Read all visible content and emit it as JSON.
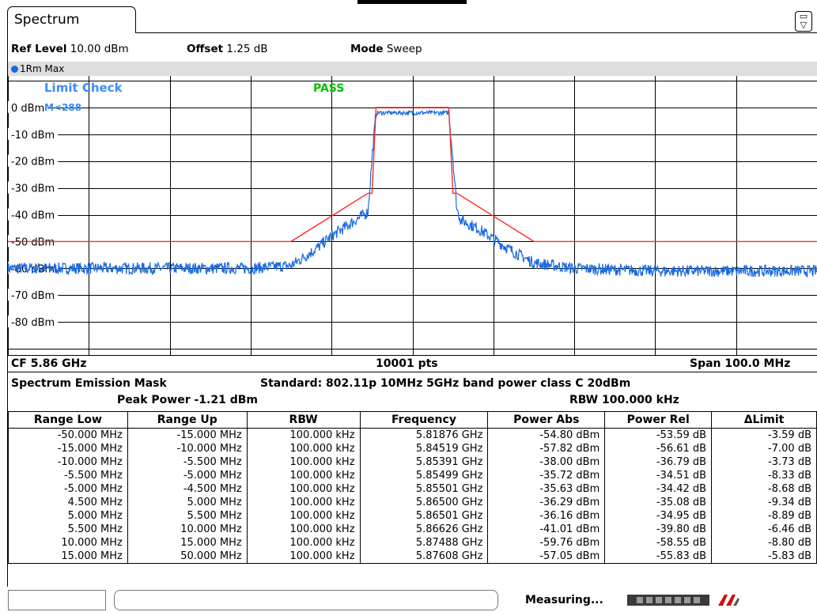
{
  "tab": {
    "label": "Spectrum"
  },
  "settings": {
    "ref_level_label": "Ref Level",
    "ref_level_value": "10.00 dBm",
    "offset_label": "Offset",
    "offset_value": "1.25 dB",
    "mode_label": "Mode",
    "mode_value": "Sweep"
  },
  "trace": {
    "label": "1Rm Max",
    "color": "#1a6adf"
  },
  "plot": {
    "limit_check_label": "Limit Check",
    "limit_check_result": "PASS",
    "limit_line_label": "M<288",
    "y_ticks": [
      "0 dBm",
      "-10 dBm",
      "-20 dBm",
      "-30 dBm",
      "-40 dBm",
      "-50 dBm",
      "-60 dBm",
      "-70 dBm",
      "-80 dBm"
    ],
    "cf": "CF 5.86 GHz",
    "points": "10001 pts",
    "span": "Span 100.0 MHz",
    "pass_color": "#00c000",
    "limit_color": "#ff2a2a",
    "label_color": "#3a8cff"
  },
  "chart_data": {
    "type": "line",
    "x_unit": "MHz offset",
    "xlim": [
      -50,
      50
    ],
    "ylim": [
      -90,
      10
    ],
    "ylabel_unit": "dBm",
    "series": [
      {
        "name": "1Rm Max",
        "x": [
          -50,
          -35,
          -20,
          -15,
          -12,
          -10,
          -8,
          -6,
          -5.5,
          -5,
          -4.5,
          4.5,
          5,
          5.5,
          6,
          8,
          10,
          12,
          15,
          20,
          30,
          50
        ],
        "y": [
          -60,
          -60,
          -60,
          -59,
          -53,
          -48,
          -44,
          -40,
          -39,
          -19,
          -2,
          -2,
          -19,
          -38,
          -42,
          -45,
          -49,
          -53,
          -58,
          -60,
          -61,
          -61
        ]
      },
      {
        "name": "Limit",
        "x": [
          -50,
          -15,
          -5.5,
          -5,
          -4.5,
          4.5,
          5,
          5.5,
          15,
          50
        ],
        "y": [
          -50,
          -50,
          -32,
          -32,
          0,
          0,
          -32,
          -32,
          -50,
          -50
        ]
      }
    ]
  },
  "sem": {
    "title": "Spectrum Emission Mask",
    "standard": "Standard: 802.11p 10MHz 5GHz band power class C 20dBm",
    "peak_power": "Peak Power  -1.21 dBm",
    "rbw": "RBW  100.000 kHz",
    "columns": [
      "Range Low",
      "Range Up",
      "RBW",
      "Frequency",
      "Power Abs",
      "Power Rel",
      "ΔLimit"
    ],
    "rows": [
      [
        "-50.000 MHz",
        "-15.000 MHz",
        "100.000 kHz",
        "5.81876 GHz",
        "-54.80 dBm",
        "-53.59 dB",
        "-3.59 dB"
      ],
      [
        "-15.000 MHz",
        "-10.000 MHz",
        "100.000 kHz",
        "5.84519 GHz",
        "-57.82 dBm",
        "-56.61 dB",
        "-7.00 dB"
      ],
      [
        "-10.000 MHz",
        "-5.500 MHz",
        "100.000 kHz",
        "5.85391 GHz",
        "-38.00 dBm",
        "-36.79 dB",
        "-3.73 dB"
      ],
      [
        "-5.500 MHz",
        "-5.000 MHz",
        "100.000 kHz",
        "5.85499 GHz",
        "-35.72 dBm",
        "-34.51 dB",
        "-8.33 dB"
      ],
      [
        "-5.000 MHz",
        "-4.500 MHz",
        "100.000 kHz",
        "5.85501 GHz",
        "-35.63 dBm",
        "-34.42 dB",
        "-8.68 dB"
      ],
      [
        "4.500 MHz",
        "5.000 MHz",
        "100.000 kHz",
        "5.86500 GHz",
        "-36.29 dBm",
        "-35.08 dB",
        "-9.34 dB"
      ],
      [
        "5.000 MHz",
        "5.500 MHz",
        "100.000 kHz",
        "5.86501 GHz",
        "-36.16 dBm",
        "-34.95 dB",
        "-8.89 dB"
      ],
      [
        "5.500 MHz",
        "10.000 MHz",
        "100.000 kHz",
        "5.86626 GHz",
        "-41.01 dBm",
        "-39.80 dB",
        "-6.46 dB"
      ],
      [
        "10.000 MHz",
        "15.000 MHz",
        "100.000 kHz",
        "5.87488 GHz",
        "-59.76 dBm",
        "-58.55 dB",
        "-8.80 dB"
      ],
      [
        "15.000 MHz",
        "50.000 MHz",
        "100.000 kHz",
        "5.87608 GHz",
        "-57.05 dBm",
        "-55.83 dB",
        "-5.83 dB"
      ]
    ]
  },
  "status": {
    "measuring": "Measuring..."
  }
}
